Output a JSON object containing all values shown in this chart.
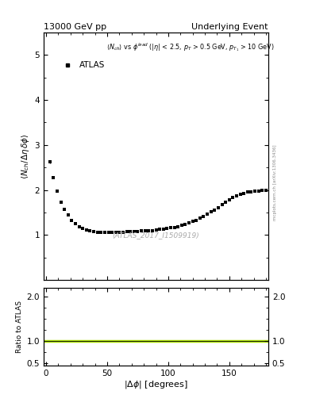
{
  "title_left": "13000 GeV pp",
  "title_right": "Underlying Event",
  "ylabel_main": "<N_{ch}/ \\u0394\\u03b7 delta\\u03d5>",
  "ylabel_ratio": "Ratio to ATLAS",
  "legend_label": "ATLAS",
  "watermark": "(ATLAS_2017_I1509919)",
  "side_text": "mcplots.cern.ch [arXiv:1306.3436]",
  "ylim_main": [
    0.0,
    5.5
  ],
  "ylim_ratio": [
    0.45,
    2.2
  ],
  "xlim": [
    -2,
    182
  ],
  "ratio_line_y": 1.0,
  "ratio_line_color": "#aadd00",
  "ratio_line_color2": "black",
  "data_x": [
    3,
    6,
    9,
    12,
    15,
    18,
    21,
    24,
    27,
    30,
    33,
    36,
    39,
    42,
    45,
    48,
    51,
    54,
    57,
    60,
    63,
    66,
    69,
    72,
    75,
    78,
    81,
    84,
    87,
    90,
    93,
    96,
    99,
    102,
    105,
    108,
    111,
    114,
    117,
    120,
    123,
    126,
    129,
    132,
    135,
    138,
    141,
    144,
    147,
    150,
    153,
    156,
    159,
    162,
    165,
    168,
    171,
    174,
    177,
    180
  ],
  "data_y": [
    2.62,
    2.28,
    1.97,
    1.73,
    1.57,
    1.44,
    1.33,
    1.25,
    1.19,
    1.15,
    1.11,
    1.09,
    1.07,
    1.06,
    1.05,
    1.05,
    1.05,
    1.05,
    1.05,
    1.06,
    1.06,
    1.07,
    1.07,
    1.08,
    1.08,
    1.09,
    1.09,
    1.1,
    1.1,
    1.11,
    1.12,
    1.13,
    1.14,
    1.16,
    1.17,
    1.19,
    1.21,
    1.24,
    1.27,
    1.3,
    1.33,
    1.37,
    1.41,
    1.46,
    1.51,
    1.56,
    1.61,
    1.67,
    1.73,
    1.78,
    1.83,
    1.87,
    1.91,
    1.93,
    1.95,
    1.96,
    1.97,
    1.98,
    1.99,
    2.0
  ],
  "data_yerr": [
    0.03,
    0.02,
    0.02,
    0.02,
    0.02,
    0.02,
    0.01,
    0.01,
    0.01,
    0.01,
    0.01,
    0.01,
    0.01,
    0.01,
    0.01,
    0.01,
    0.01,
    0.01,
    0.01,
    0.01,
    0.01,
    0.01,
    0.01,
    0.01,
    0.01,
    0.01,
    0.01,
    0.01,
    0.01,
    0.01,
    0.01,
    0.01,
    0.01,
    0.01,
    0.01,
    0.01,
    0.01,
    0.01,
    0.01,
    0.01,
    0.01,
    0.01,
    0.01,
    0.01,
    0.01,
    0.01,
    0.01,
    0.01,
    0.01,
    0.01,
    0.01,
    0.01,
    0.01,
    0.01,
    0.01,
    0.01,
    0.01,
    0.01,
    0.01,
    0.02
  ],
  "marker_color": "black",
  "marker": "s",
  "marker_size": 3.5,
  "annotation_line1": "<N_{ch}> vs \\u03d5^{lead} (|\\u03b7| < 2.5, p_{T} > 0.5 GeV, p_{T1} > 10 GeV)"
}
